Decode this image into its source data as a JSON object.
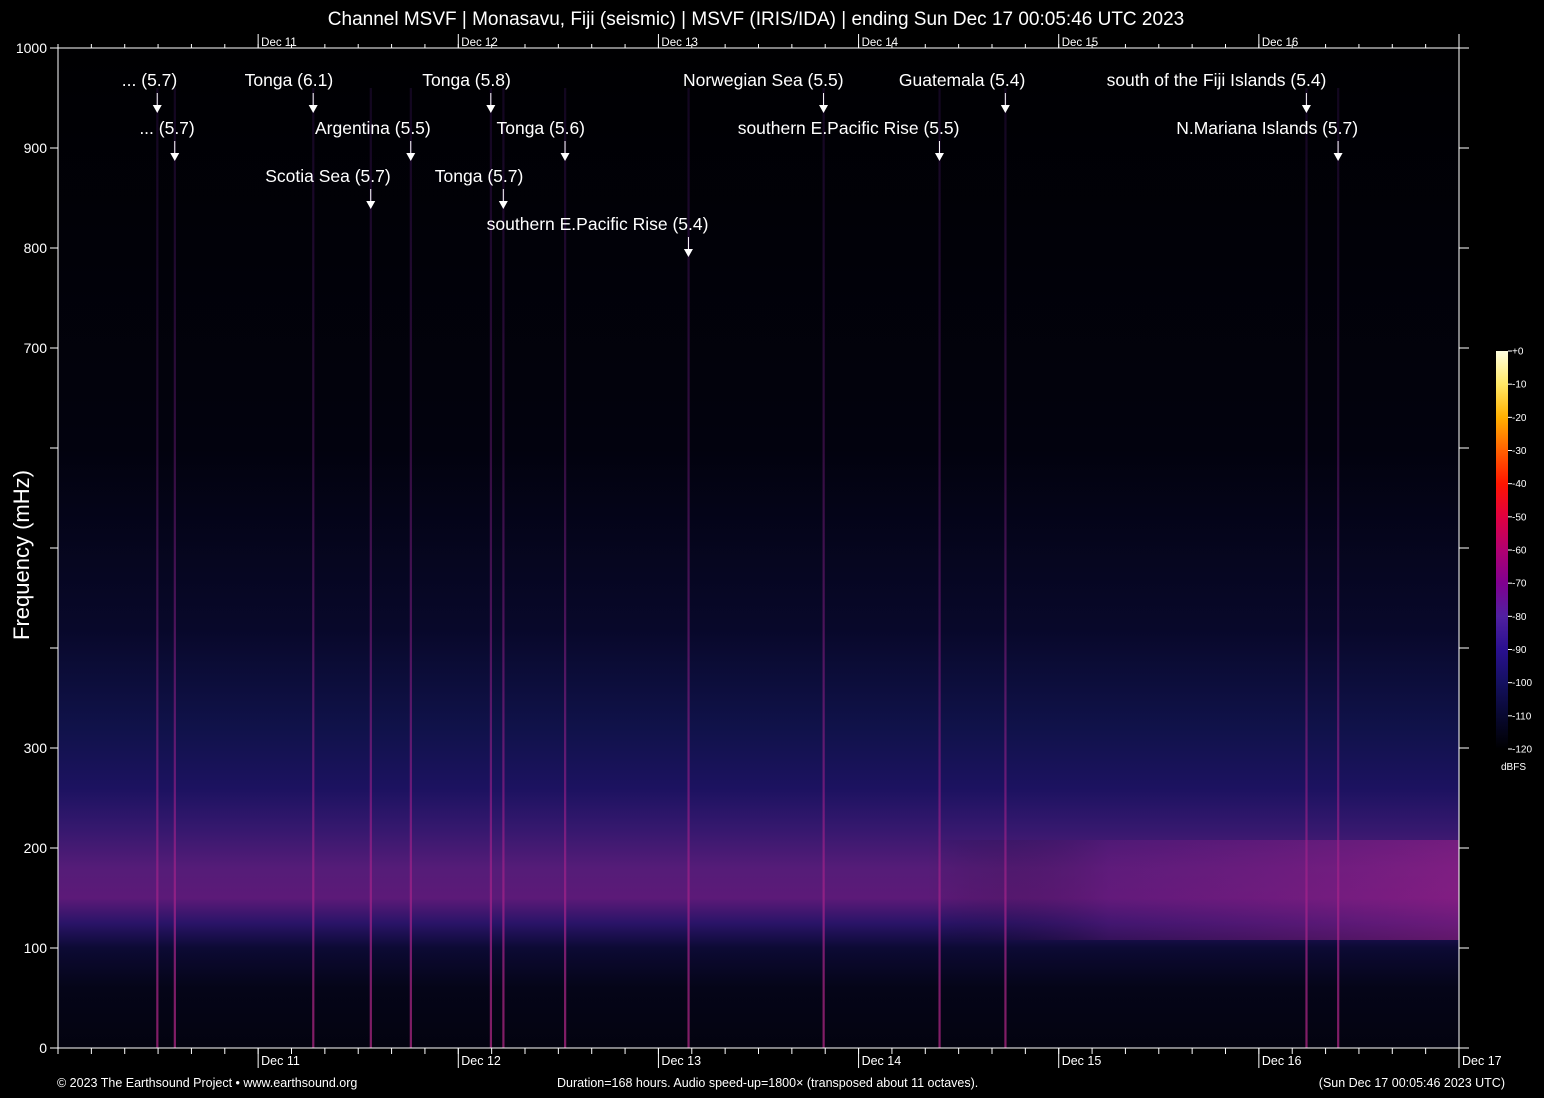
{
  "title": "Channel MSVF | Monasavu, Fiji (seismic) | MSVF (IRIS/IDA) | ending Sun Dec 17 00:05:46 UTC 2023",
  "footer": {
    "copyright": "© 2023 The Earthsound Project • www.earthsound.org",
    "duration": "Duration=168 hours. Audio speed-up=1800× (transposed about 11 octaves).",
    "timestamp": "(Sun Dec 17 00:05:46 2023 UTC)"
  },
  "colorbar": {
    "title": "dBFS",
    "ticks": [
      "+0",
      "-10",
      "-20",
      "-30",
      "-40",
      "-50",
      "-60",
      "-70",
      "-80",
      "-90",
      "-100",
      "-110",
      "-120"
    ],
    "colors": [
      "#ffffe0",
      "#ffe866",
      "#ffb000",
      "#ff6000",
      "#ff1500",
      "#e00040",
      "#b00070",
      "#800090",
      "#5020a0",
      "#2a1090",
      "#141060",
      "#080830",
      "#000000"
    ]
  },
  "chart_data": {
    "type": "heatmap",
    "ylabel": "Frequency (mHz)",
    "xlabel": "",
    "ylim": [
      0,
      1000
    ],
    "y_ticks": [
      0,
      100,
      200,
      300,
      700,
      800,
      900,
      1000
    ],
    "x_range_hours": [
      0,
      168
    ],
    "x_date_ticks": [
      {
        "label": "Dec 11",
        "hour": 24
      },
      {
        "label": "Dec 12",
        "hour": 48
      },
      {
        "label": "Dec 13",
        "hour": 72
      },
      {
        "label": "Dec 14",
        "hour": 96
      },
      {
        "label": "Dec 15",
        "hour": 120
      },
      {
        "label": "Dec 16",
        "hour": 144
      },
      {
        "label": "Dec 17",
        "hour": 168
      }
    ],
    "events": [
      {
        "label": "... (5.7)",
        "hour": 11.9
      },
      {
        "label": "... (5.7)",
        "hour": 14.0
      },
      {
        "label": "Tonga (6.1)",
        "hour": 30.6
      },
      {
        "label": "Argentina (5.5)",
        "hour": 42.3
      },
      {
        "label": "Scotia Sea (5.7)",
        "hour": 37.5
      },
      {
        "label": "Tonga (5.8)",
        "hour": 51.9
      },
      {
        "label": "Tonga (5.7)",
        "hour": 53.4
      },
      {
        "label": "Tonga (5.6)",
        "hour": 60.8
      },
      {
        "label": "southern E.Pacific Rise (5.4)",
        "hour": 75.6
      },
      {
        "label": "Norwegian Sea (5.5)",
        "hour": 91.8
      },
      {
        "label": "southern E.Pacific Rise (5.5)",
        "hour": 105.7
      },
      {
        "label": "Guatemala (5.4)",
        "hour": 113.6
      },
      {
        "label": "south of the Fiji Islands (5.4)",
        "hour": 149.7
      },
      {
        "label": "N.Mariana Islands (5.7)",
        "hour": 153.5
      }
    ],
    "colorbar_range_dbfs": [
      -120,
      0
    ],
    "colormap": "dark-purple-magenta-orange-yellow"
  }
}
